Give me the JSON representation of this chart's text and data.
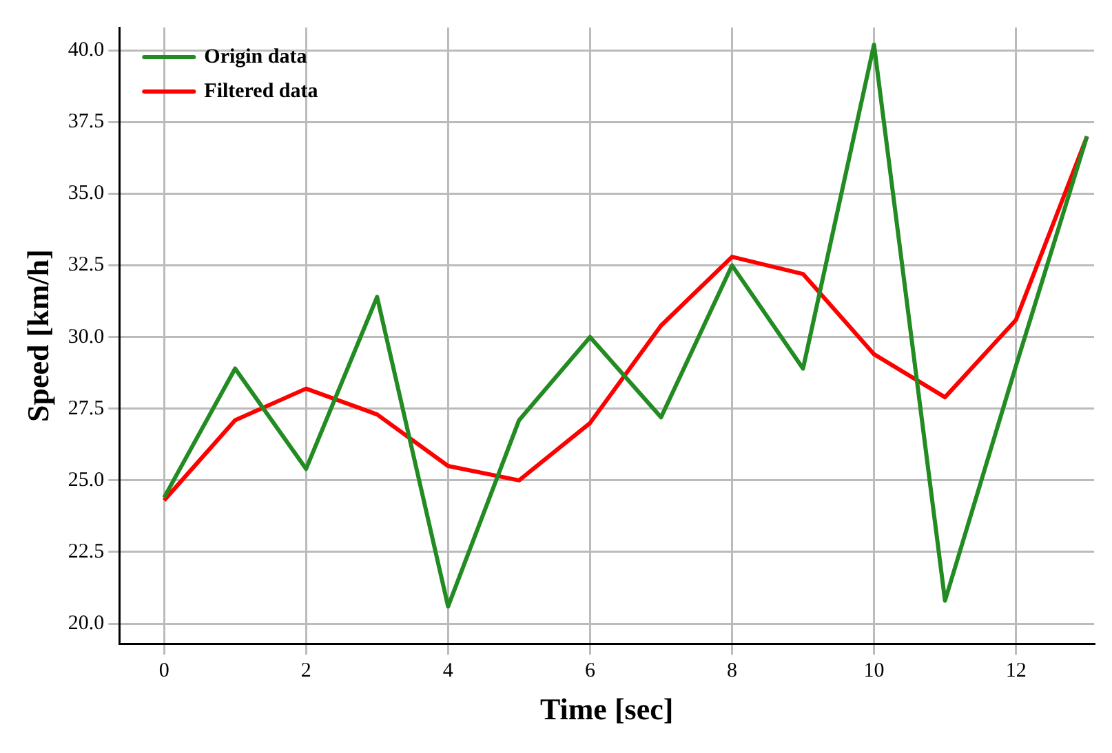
{
  "chart_data": {
    "type": "line",
    "xlabel": "Time [sec]",
    "ylabel": "Speed [km/h]",
    "x": [
      0,
      1,
      2,
      3,
      4,
      5,
      6,
      7,
      8,
      9,
      10,
      11,
      12,
      13
    ],
    "series": [
      {
        "name": "Origin data",
        "color": "#228b22",
        "values": [
          24.4,
          28.9,
          25.4,
          31.4,
          20.6,
          27.1,
          30.0,
          27.2,
          32.5,
          28.9,
          40.2,
          20.8,
          29.0,
          37.0
        ]
      },
      {
        "name": "Filtered data",
        "color": "#ff0000",
        "values": [
          24.3,
          27.1,
          28.2,
          27.3,
          25.5,
          25.0,
          27.0,
          30.4,
          32.8,
          32.2,
          29.4,
          27.9,
          30.6,
          37.0
        ]
      }
    ],
    "xlim": [
      -0.63,
      13.1
    ],
    "xticks": [
      0,
      2,
      4,
      6,
      8,
      10,
      12
    ],
    "ylim": [
      19.3,
      40.8
    ],
    "yticks": [
      {
        "value": 20,
        "label": "20.0"
      },
      {
        "value": 22.5,
        "label": "22.5"
      },
      {
        "value": 25,
        "label": "25.0"
      },
      {
        "value": 27.5,
        "label": "27.5"
      },
      {
        "value": 30,
        "label": "30.0"
      },
      {
        "value": 32.5,
        "label": "32.5"
      },
      {
        "value": 35,
        "label": "35.0"
      },
      {
        "value": 37.5,
        "label": "37.5"
      },
      {
        "value": 40,
        "label": "40.0"
      }
    ],
    "grid": true,
    "legend": "top left",
    "marker": "none",
    "line_style": "solid"
  }
}
